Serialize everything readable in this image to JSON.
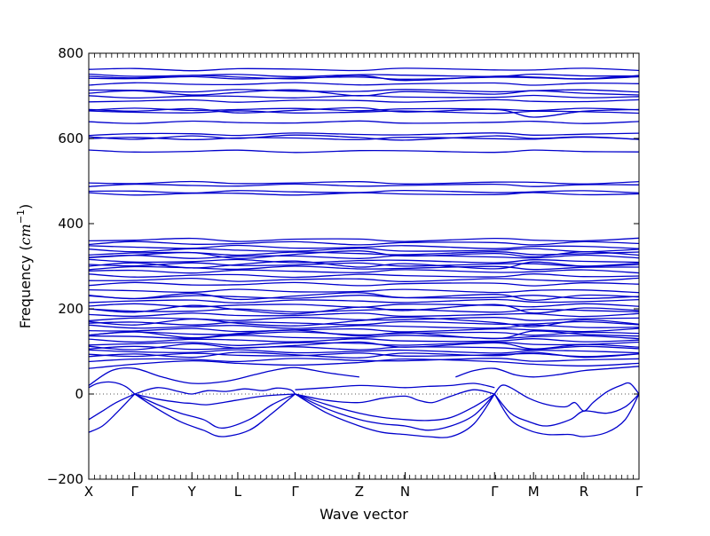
{
  "chart_data": {
    "type": "line",
    "xlabel": "Wave vector",
    "ylabel": "Frequency ($cm^{-1}$)",
    "ylabel_parts": {
      "text": "Frequency (",
      "unit_base": "cm",
      "unit_exp": "−1",
      "close": ")"
    },
    "ylim": [
      -200,
      800
    ],
    "yticks": [
      -200,
      0,
      200,
      400,
      600,
      800
    ],
    "ytick_labels": [
      "−200",
      "0",
      "200",
      "400",
      "600",
      "800"
    ],
    "xlim": [
      0,
      12
    ],
    "high_symmetry_points": [
      {
        "label": "X",
        "x": 0
      },
      {
        "label": "Γ",
        "x": 1
      },
      {
        "label": "Y",
        "x": 2.25
      },
      {
        "label": "L",
        "x": 3.25
      },
      {
        "label": "Γ",
        "x": 4.5
      },
      {
        "label": "Z",
        "x": 5.9
      },
      {
        "label": "N",
        "x": 6.9
      },
      {
        "label": "Γ",
        "x": 8.85
      },
      {
        "label": "M",
        "x": 9.7
      },
      {
        "label": "R",
        "x": 10.8
      },
      {
        "label": "Γ",
        "x": 12
      }
    ],
    "zero_line": 0,
    "line_color": "#0000cc",
    "zero_line_color": "#555555",
    "flat_bands": [
      762,
      748,
      742,
      728,
      712,
      698,
      688,
      668,
      662,
      638,
      610,
      600,
      570,
      496,
      490,
      475,
      470,
      362,
      354,
      345,
      338,
      330,
      322,
      312,
      304,
      296,
      288,
      278,
      268,
      258,
      242,
      228,
      218,
      208,
      196,
      186,
      176,
      166,
      158,
      150,
      142,
      134,
      126,
      118,
      108,
      100,
      92,
      80
    ],
    "series": [
      {
        "x": [
          0,
          0.3,
          0.6,
          1
        ],
        "y": [
          -90,
          -75,
          -45,
          0
        ]
      },
      {
        "x": [
          0,
          0.3,
          0.6,
          1
        ],
        "y": [
          -60,
          -40,
          -20,
          0
        ]
      },
      {
        "x": [
          0,
          0.2,
          0.5,
          0.8,
          1
        ],
        "y": [
          15,
          25,
          28,
          18,
          0
        ]
      },
      {
        "x": [
          1,
          1.5,
          2.0,
          2.5,
          2.9,
          3.5,
          4.0,
          4.5
        ],
        "y": [
          0,
          -35,
          -65,
          -85,
          -100,
          -85,
          -45,
          0
        ]
      },
      {
        "x": [
          1,
          1.5,
          2.0,
          2.5,
          2.9,
          3.5,
          4.0,
          4.5
        ],
        "y": [
          0,
          -25,
          -45,
          -60,
          -80,
          -60,
          -25,
          0
        ]
      },
      {
        "x": [
          1,
          1.5,
          2.0,
          2.25,
          2.6,
          3.2,
          3.8,
          4.5
        ],
        "y": [
          0,
          -12,
          -20,
          -22,
          -25,
          -15,
          -5,
          0
        ]
      },
      {
        "x": [
          1,
          1.5,
          2.0,
          2.25,
          2.6,
          3.0,
          3.4,
          3.8,
          4.1,
          4.4,
          4.5
        ],
        "y": [
          0,
          15,
          5,
          0,
          8,
          6,
          12,
          8,
          14,
          10,
          0
        ]
      },
      {
        "x": [
          0,
          0.5,
          1,
          1.6,
          2.25,
          3.0,
          3.6,
          4.0,
          4.5,
          5.2,
          5.9
        ],
        "y": [
          20,
          55,
          60,
          40,
          25,
          30,
          45,
          55,
          62,
          50,
          40
        ]
      },
      {
        "x": [
          4.5,
          5.2,
          5.9,
          6.4,
          6.9,
          7.4,
          7.9,
          8.4,
          8.85
        ],
        "y": [
          0,
          -45,
          -75,
          -90,
          -95,
          -100,
          -100,
          -70,
          0
        ]
      },
      {
        "x": [
          4.5,
          5.2,
          5.9,
          6.4,
          6.9,
          7.4,
          7.9,
          8.4,
          8.85
        ],
        "y": [
          0,
          -35,
          -60,
          -70,
          -75,
          -85,
          -75,
          -50,
          0
        ]
      },
      {
        "x": [
          4.5,
          5.2,
          5.9,
          6.4,
          6.9,
          7.4,
          7.9,
          8.4,
          8.85
        ],
        "y": [
          0,
          -25,
          -45,
          -55,
          -60,
          -62,
          -55,
          -30,
          0
        ]
      },
      {
        "x": [
          4.5,
          5.2,
          5.9,
          6.4,
          6.9,
          7.2,
          7.5,
          7.9,
          8.4,
          8.85
        ],
        "y": [
          0,
          -15,
          -20,
          -10,
          -5,
          -15,
          -20,
          -5,
          10,
          0
        ]
      },
      {
        "x": [
          4.5,
          5.2,
          5.9,
          6.4,
          6.9,
          7.4,
          7.9,
          8.4,
          8.85
        ],
        "y": [
          10,
          15,
          20,
          18,
          15,
          18,
          20,
          25,
          15
        ]
      },
      {
        "x": [
          8.85,
          9.2,
          9.6,
          10.0,
          10.5,
          10.8,
          11.3,
          11.7,
          12
        ],
        "y": [
          0,
          -60,
          -85,
          -95,
          -95,
          -100,
          -90,
          -60,
          0
        ]
      },
      {
        "x": [
          8.85,
          9.2,
          9.6,
          10.0,
          10.5,
          10.8,
          11.3,
          11.7,
          12
        ],
        "y": [
          0,
          -45,
          -65,
          -75,
          -60,
          -40,
          -45,
          -30,
          0
        ]
      },
      {
        "x": [
          8.85,
          9.0,
          9.2,
          9.6,
          10.0,
          10.4,
          10.6,
          10.8,
          11.0,
          11.3,
          11.6,
          11.8,
          12
        ],
        "y": [
          0,
          20,
          15,
          -10,
          -25,
          -30,
          -20,
          -40,
          -20,
          5,
          20,
          25,
          0
        ]
      },
      {
        "x": [
          8.0,
          8.4,
          8.85,
          9.3,
          9.7,
          10.2,
          10.8,
          11.4,
          12
        ],
        "y": [
          40,
          55,
          60,
          45,
          40,
          45,
          55,
          60,
          65
        ]
      },
      {
        "x": [
          0,
          1,
          2.25,
          3.25,
          4.5,
          5.9,
          6.9,
          8.85,
          9.7,
          10.8,
          12
        ],
        "y": [
          60,
          70,
          78,
          72,
          68,
          74,
          82,
          76,
          70,
          66,
          72
        ]
      },
      {
        "x": [
          0,
          1,
          2.25,
          3.25,
          4.5,
          5.9,
          6.9,
          8.85,
          9.7,
          10.8,
          12
        ],
        "y": [
          88,
          94,
          86,
          98,
          92,
          85,
          96,
          90,
          98,
          86,
          94
        ]
      },
      {
        "x": [
          0,
          1,
          2.25,
          3.25,
          4.5,
          5.9,
          6.9,
          8.85,
          9.7,
          10.8,
          12
        ],
        "y": [
          112,
          104,
          118,
          108,
          114,
          122,
          110,
          120,
          106,
          116,
          110
        ]
      },
      {
        "x": [
          0,
          1,
          2.25,
          3.25,
          4.5,
          5.9,
          6.9,
          8.85,
          9.7,
          10.8,
          12
        ],
        "y": [
          138,
          146,
          132,
          142,
          150,
          136,
          144,
          130,
          148,
          140,
          136
        ]
      },
      {
        "x": [
          0,
          1,
          2.25,
          3.25,
          4.5,
          5.9,
          6.9,
          8.85,
          9.7,
          10.8,
          12
        ],
        "y": [
          170,
          162,
          176,
          166,
          160,
          172,
          180,
          168,
          158,
          174,
          164
        ]
      },
      {
        "x": [
          0,
          1,
          2.25,
          3.25,
          4.5,
          5.9,
          6.9,
          8.85,
          9.7,
          10.8,
          12
        ],
        "y": [
          200,
          192,
          208,
          198,
          188,
          204,
          196,
          210,
          190,
          202,
          196
        ]
      },
      {
        "x": [
          0,
          1,
          2.25,
          3.25,
          4.5,
          5.9,
          6.9,
          8.85,
          9.7,
          10.8,
          12
        ],
        "y": [
          232,
          224,
          236,
          222,
          230,
          238,
          226,
          234,
          220,
          232,
          228
        ]
      },
      {
        "x": [
          0,
          1,
          2.25,
          3.25,
          4.5,
          5.9,
          6.9,
          8.85,
          9.7,
          10.8,
          12
        ],
        "y": [
          300,
          308,
          296,
          304,
          312,
          298,
          306,
          294,
          310,
          300,
          304
        ]
      },
      {
        "x": [
          0,
          1,
          2.25,
          3.25,
          4.5,
          5.9,
          6.9,
          8.85,
          9.7,
          10.8,
          12
        ],
        "y": [
          320,
          326,
          332,
          318,
          328,
          336,
          324,
          330,
          322,
          334,
          326
        ]
      },
      {
        "x": [
          0,
          1,
          2.25,
          3.25,
          4.5,
          5.9,
          6.9,
          8.85,
          9.7,
          10.8,
          12
        ],
        "y": [
          604,
          598,
          606,
          600,
          608,
          602,
          596,
          606,
          600,
          604,
          598
        ]
      },
      {
        "x": [
          0,
          1,
          2.25,
          3.25,
          4.5,
          5.9,
          6.9,
          8.85,
          9.7,
          10.8,
          12
        ],
        "y": [
          668,
          664,
          670,
          660,
          666,
          672,
          662,
          668,
          650,
          664,
          668
        ]
      },
      {
        "x": [
          0,
          1,
          2.25,
          3.25,
          4.5,
          5.9,
          6.9,
          8.85,
          9.7,
          10.8,
          12
        ],
        "y": [
          746,
          742,
          748,
          744,
          740,
          748,
          736,
          746,
          744,
          740,
          748
        ]
      },
      {
        "x": [
          0,
          1,
          2.25,
          3.25,
          4.5,
          5.9,
          6.9,
          8.85,
          9.7,
          10.8,
          12
        ],
        "y": [
          706,
          712,
          702,
          708,
          714,
          700,
          710,
          704,
          712,
          706,
          702
        ]
      }
    ]
  }
}
